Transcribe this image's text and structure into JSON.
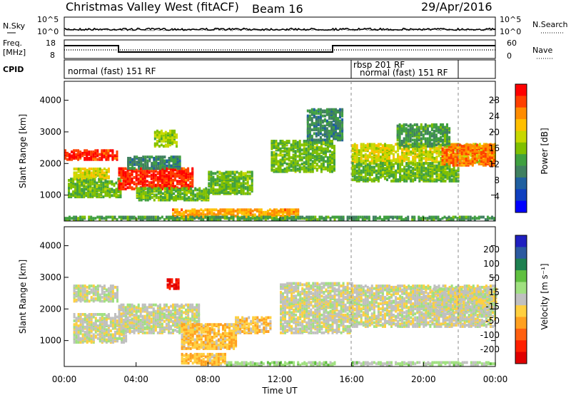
{
  "header": {
    "title": "Christmas Valley West (fitACF)",
    "beam": "Beam 16",
    "date": "29/Apr/2016"
  },
  "strip_panels": {
    "nsky": {
      "label": "N.Sky",
      "yticks": [
        "10^5",
        "10^0"
      ],
      "right_label": "N.Search",
      "right_yticks": [
        "10^5",
        "10^0"
      ]
    },
    "freq": {
      "label_lines": [
        "Freq.",
        "[MHz]"
      ],
      "yticks": [
        "18",
        "8"
      ],
      "right_label": "Nave",
      "right_yticks": [
        "60",
        "0"
      ]
    },
    "cpid": {
      "label": "CPID",
      "segments": [
        "normal (fast) 151 RF",
        "rbsp 201 RF",
        "normal (fast) 151 RF"
      ]
    }
  },
  "colorbars": {
    "power": {
      "label": "Power [dB]",
      "ticks": [
        "28",
        "24",
        "20",
        "16",
        "12",
        "8",
        "4"
      ],
      "colors": [
        "#ff0000",
        "#ff4000",
        "#ff8c00",
        "#ffc000",
        "#c8d800",
        "#80c000",
        "#40a040",
        "#408060",
        "#2060a0",
        "#1040c0",
        "#0000ff"
      ]
    },
    "velocity": {
      "label": "Velocity [m s⁻¹]",
      "ticks": [
        "200",
        "100",
        "50",
        "15",
        "-15",
        "-50",
        "-100",
        "-200"
      ],
      "colors": [
        "#2020c0",
        "#2c5aa0",
        "#1e8050",
        "#60c040",
        "#a0e080",
        "#c0c0c0",
        "#ffd040",
        "#ffa020",
        "#ff6010",
        "#ff2000",
        "#e00000"
      ]
    }
  },
  "xaxis": {
    "ticks": [
      "00:00",
      "04:00",
      "08:00",
      "12:00",
      "16:00",
      "20:00",
      "00:00"
    ],
    "label": "Time UT"
  },
  "chart_data": [
    {
      "type": "heatmap",
      "title": "Power",
      "ylabel": "Slant Range [km]",
      "xlabel": "Time UT",
      "ylim": [
        180,
        4600
      ],
      "xlim": [
        0,
        24
      ],
      "yticks": [
        "1000",
        "2000",
        "3000",
        "4000"
      ],
      "colorbar_range": [
        0,
        30
      ],
      "mode_change_markers_ut": [
        16.0,
        22.0
      ],
      "patches": [
        {
          "t0": 0.0,
          "t1": 3.0,
          "r0": 2080,
          "r1": 2380,
          "value": 27
        },
        {
          "t0": 0.2,
          "t1": 3.2,
          "r0": 900,
          "r1": 1500,
          "value": 14
        },
        {
          "t0": 0.5,
          "t1": 2.5,
          "r0": 1500,
          "r1": 1800,
          "value": 18
        },
        {
          "t0": 3.0,
          "t1": 7.2,
          "r0": 1150,
          "r1": 1800,
          "value": 27
        },
        {
          "t0": 3.5,
          "t1": 6.5,
          "r0": 1800,
          "r1": 2200,
          "value": 10
        },
        {
          "t0": 5.0,
          "t1": 6.3,
          "r0": 2500,
          "r1": 3000,
          "value": 16
        },
        {
          "t0": 4.0,
          "t1": 8.0,
          "r0": 800,
          "r1": 1200,
          "value": 14
        },
        {
          "t0": 8.0,
          "t1": 10.5,
          "r0": 1000,
          "r1": 1700,
          "value": 14
        },
        {
          "t0": 6.0,
          "t1": 13.0,
          "r0": 250,
          "r1": 500,
          "value": 22
        },
        {
          "t0": 11.5,
          "t1": 15.0,
          "r0": 1700,
          "r1": 2700,
          "value": 14
        },
        {
          "t0": 13.5,
          "t1": 15.5,
          "r0": 2700,
          "r1": 3700,
          "value": 10
        },
        {
          "t0": 16.0,
          "t1": 24.0,
          "r0": 2000,
          "r1": 2600,
          "value": 18
        },
        {
          "t0": 16.0,
          "t1": 22.0,
          "r0": 1400,
          "r1": 2000,
          "value": 14
        },
        {
          "t0": 21.0,
          "t1": 24.0,
          "r0": 1900,
          "r1": 2550,
          "value": 24
        },
        {
          "t0": 18.5,
          "t1": 21.5,
          "r0": 2500,
          "r1": 3200,
          "value": 12
        },
        {
          "t0": 0.0,
          "t1": 24.0,
          "r0": 180,
          "r1": 300,
          "value": 12
        }
      ]
    },
    {
      "type": "heatmap",
      "title": "Velocity",
      "ylabel": "Slant Range [km]",
      "xlabel": "Time UT",
      "ylim": [
        180,
        4600
      ],
      "xlim": [
        0,
        24
      ],
      "yticks": [
        "1000",
        "2000",
        "3000",
        "4000"
      ],
      "colorbar_range": [
        -250,
        250
      ],
      "mode_change_markers_ut": [
        16.0,
        22.0
      ],
      "patches": [
        {
          "t0": 0.5,
          "t1": 3.0,
          "r0": 2200,
          "r1": 2700,
          "value": 0
        },
        {
          "t0": 0.5,
          "t1": 3.5,
          "r0": 900,
          "r1": 1800,
          "value": 0
        },
        {
          "t0": 3.0,
          "t1": 7.5,
          "r0": 1200,
          "r1": 2100,
          "value": 0
        },
        {
          "t0": 5.7,
          "t1": 6.4,
          "r0": 2600,
          "r1": 2900,
          "value": -210
        },
        {
          "t0": 6.5,
          "t1": 9.5,
          "r0": 700,
          "r1": 1500,
          "value": -60
        },
        {
          "t0": 9.5,
          "t1": 11.5,
          "r0": 1200,
          "r1": 1700,
          "value": -50
        },
        {
          "t0": 6.5,
          "t1": 9.0,
          "r0": 200,
          "r1": 550,
          "value": -60
        },
        {
          "t0": 9.0,
          "t1": 15.0,
          "r0": 180,
          "r1": 300,
          "value": 40
        },
        {
          "t0": 12.0,
          "t1": 16.0,
          "r0": 1200,
          "r1": 2800,
          "value": 0
        },
        {
          "t0": 16.0,
          "t1": 24.0,
          "r0": 1400,
          "r1": 2700,
          "value": 0
        },
        {
          "t0": 20.5,
          "t1": 24.0,
          "r0": 1900,
          "r1": 2600,
          "value": 0
        },
        {
          "t0": 16.0,
          "t1": 24.0,
          "r0": 180,
          "r1": 300,
          "value": 30
        }
      ]
    }
  ]
}
